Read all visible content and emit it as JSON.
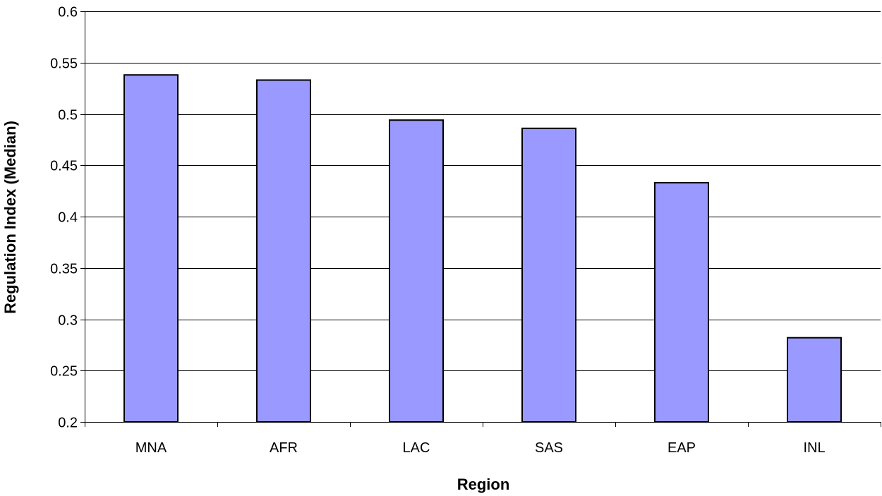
{
  "chart_data": {
    "type": "bar",
    "title": "",
    "xlabel": "Region",
    "ylabel": "Regulation Index (Median)",
    "categories": [
      "MNA",
      "AFR",
      "LAC",
      "SAS",
      "EAP",
      "INL"
    ],
    "values": [
      0.538,
      0.533,
      0.494,
      0.486,
      0.433,
      0.282
    ],
    "ylim": [
      0.2,
      0.6
    ],
    "yticks": [
      0.2,
      0.25,
      0.3,
      0.35,
      0.4,
      0.45,
      0.5,
      0.55,
      0.6
    ],
    "ytick_labels": [
      "0.2",
      "0.25",
      "0.3",
      "0.35",
      "0.4",
      "0.45",
      "0.5",
      "0.55",
      "0.6"
    ],
    "grid": true,
    "legend": "none",
    "colors": {
      "bar_fill": "#9999FF",
      "bar_stroke": "#000000",
      "grid": "#000000"
    }
  }
}
